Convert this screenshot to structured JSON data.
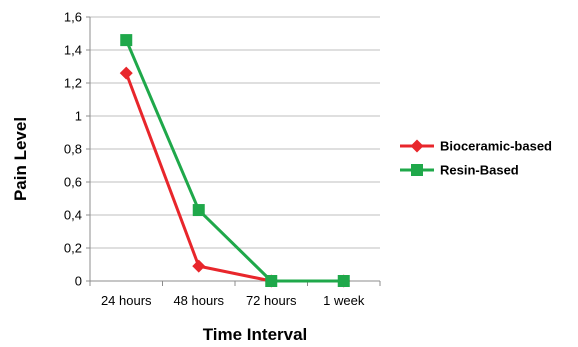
{
  "chart_data": {
    "type": "line",
    "title": "",
    "xlabel": "Time Interval",
    "ylabel": "Pain Level",
    "categories": [
      "24 hours",
      "48 hours",
      "72 hours",
      "1 week"
    ],
    "ylim": [
      0,
      1.6
    ],
    "yticks": [
      0,
      0.2,
      0.4,
      0.6,
      0.8,
      1,
      1.2,
      1.4,
      1.6
    ],
    "ytick_labels": [
      "0",
      "0,2",
      "0,4",
      "0,6",
      "0,8",
      "1",
      "1,2",
      "1,4",
      "1,6"
    ],
    "grid": "horizontal",
    "legend_position": "right",
    "series": [
      {
        "name": "Bioceramic-based",
        "values": [
          1.26,
          0.09,
          0,
          0
        ],
        "color": "#e8262b",
        "marker": "diamond"
      },
      {
        "name": "Resin-Based",
        "values": [
          1.46,
          0.43,
          0,
          0
        ],
        "color": "#1fa84a",
        "marker": "square"
      }
    ]
  }
}
